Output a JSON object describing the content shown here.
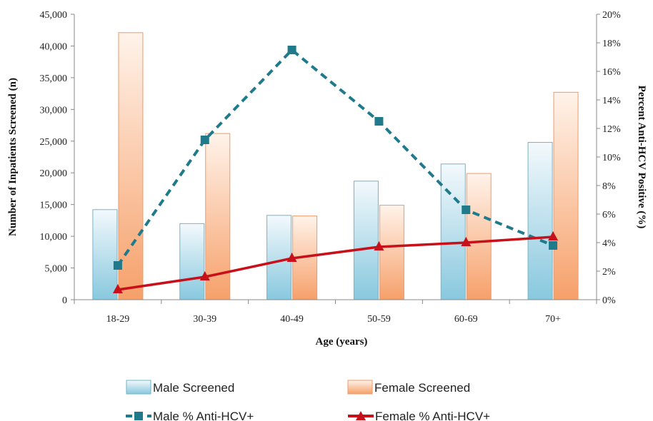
{
  "chart_data": {
    "type": "bar",
    "categories": [
      "18-29",
      "30-39",
      "40-49",
      "50-59",
      "60-69",
      "70+"
    ],
    "series": [
      {
        "name": "Male Screened",
        "type": "bar",
        "axis": "left",
        "values": [
          14200,
          12000,
          13300,
          18700,
          21400,
          24800
        ]
      },
      {
        "name": "Female Screened",
        "type": "bar",
        "axis": "left",
        "values": [
          42100,
          26200,
          13200,
          14900,
          19900,
          32700
        ]
      },
      {
        "name": "Male % Anti-HCV+",
        "type": "line",
        "axis": "right",
        "values": [
          2.4,
          11.2,
          17.5,
          12.5,
          6.3,
          3.8
        ]
      },
      {
        "name": "Female % Anti-HCV+",
        "type": "line",
        "axis": "right",
        "values": [
          0.7,
          1.6,
          2.9,
          3.7,
          4.0,
          4.4
        ]
      }
    ],
    "xlabel": "Age (years)",
    "ylabel": "Number of Inpatients Screened (n)",
    "y2label": "Percent Anti-HCV Positive (%)",
    "ylim": [
      0,
      45000
    ],
    "yticks": [
      "0",
      "5,000",
      "10,000",
      "15,000",
      "20,000",
      "25,000",
      "30,000",
      "35,000",
      "40,000",
      "45,000"
    ],
    "y2lim": [
      0,
      20
    ],
    "y2ticks": [
      "0%",
      "2%",
      "4%",
      "6%",
      "8%",
      "10%",
      "12%",
      "14%",
      "16%",
      "18%",
      "20%"
    ],
    "grid": false,
    "legend": "bottom",
    "colors": {
      "male_bar_top": "#f3f9fc",
      "male_bar_bottom": "#88c8de",
      "male_bar_stroke": "#6fb5cf",
      "female_bar_top": "#fff3ea",
      "female_bar_bottom": "#f6a06a",
      "female_bar_stroke": "#f09a66",
      "male_line": "#1f7a8c",
      "female_line": "#c8101a"
    }
  }
}
